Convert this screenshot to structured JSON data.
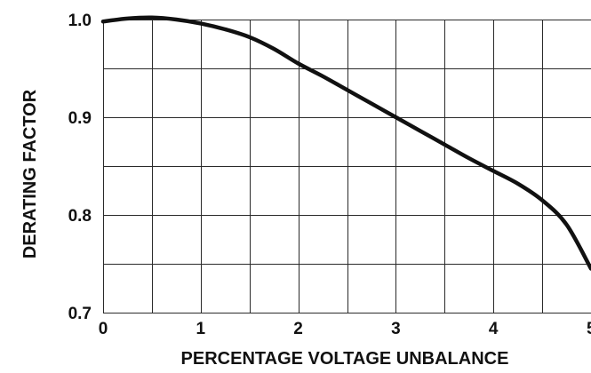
{
  "chart_data": {
    "type": "line",
    "title": "",
    "xlabel": "PERCENTAGE VOLTAGE UNBALANCE",
    "ylabel": "DERATING FACTOR",
    "xlim": [
      0,
      5
    ],
    "ylim": [
      0.7,
      1.0
    ],
    "x_ticks": [
      0,
      1,
      2,
      3,
      4,
      5
    ],
    "x_tick_labels": [
      "0",
      "1",
      "2",
      "3",
      "4",
      "5"
    ],
    "y_ticks": [
      0.7,
      0.8,
      0.9,
      1.0
    ],
    "y_tick_labels": [
      "0.7",
      "0.8",
      "0.9",
      "1.0"
    ],
    "x_grid_step": 0.5,
    "y_grid_step": 0.05,
    "grid": true,
    "legend": "none",
    "series": [
      {
        "x": [
          0,
          0.25,
          0.5,
          0.75,
          1.0,
          1.25,
          1.5,
          1.75,
          2.0,
          2.25,
          2.5,
          2.75,
          3.0,
          3.25,
          3.5,
          3.75,
          4.0,
          4.25,
          4.5,
          4.75,
          5.0
        ],
        "y": [
          0.998,
          1.001,
          1.002,
          1.0,
          0.996,
          0.99,
          0.982,
          0.97,
          0.955,
          0.942,
          0.928,
          0.914,
          0.9,
          0.886,
          0.872,
          0.858,
          0.845,
          0.832,
          0.815,
          0.79,
          0.745
        ]
      }
    ]
  }
}
